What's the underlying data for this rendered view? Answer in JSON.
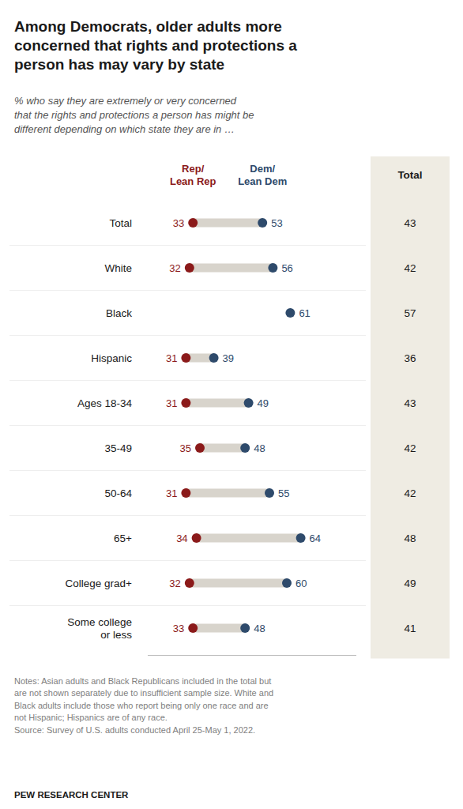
{
  "chart_data": {
    "type": "dumbbell",
    "title": "Among Democrats, older adults more\nconcerned that rights and protections a\nperson has may vary by state",
    "subtitle": "% who say they are extremely or very concerned\nthat the rights and protections a person has might be\ndifferent depending on which state they are in …",
    "categories": [
      "Total",
      "White",
      "Black",
      "Hispanic",
      "Ages 18-34",
      "35-49",
      "50-64",
      "65+",
      "College grad+",
      "Some college\nor less"
    ],
    "series": [
      {
        "name": "Rep/\nLean Rep",
        "color": "#8B1A1A",
        "values": [
          33,
          32,
          null,
          31,
          31,
          35,
          31,
          34,
          32,
          33
        ]
      },
      {
        "name": "Dem/\nLean Dem",
        "color": "#2E4A6B",
        "values": [
          53,
          56,
          61,
          39,
          49,
          48,
          55,
          64,
          60,
          48
        ]
      },
      {
        "name": "Total",
        "type": "text",
        "color": "#1a1a1a",
        "values": [
          43,
          42,
          57,
          36,
          43,
          42,
          42,
          48,
          49,
          41
        ]
      }
    ],
    "xlim": [
      20,
      80
    ],
    "tick_labels": false,
    "data_labels": true,
    "notes": "Notes: Asian adults and Black Republicans included in the total but\nare not shown separately due to insufficient sample size. White and\nBlack adults include those who report being only one race and are\nnot Hispanic; Hispanics are of any race.\nSource: Survey of U.S. adults conducted April 25-May 1, 2022.",
    "footer": "PEW RESEARCH CENTER"
  }
}
